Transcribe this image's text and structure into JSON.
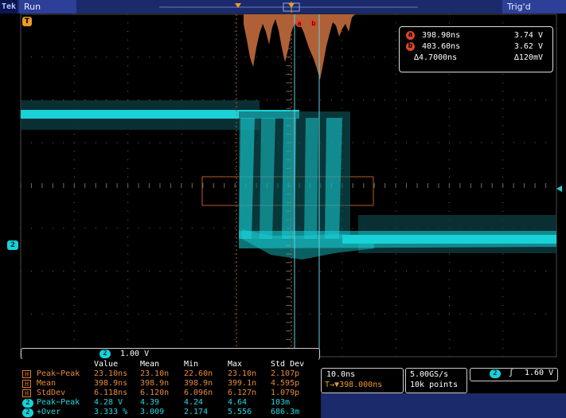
{
  "header": {
    "logo": "Tek",
    "run_state": "Run",
    "trigger_state": "Trig'd"
  },
  "markers": {
    "trigger_marker": "T",
    "ch2_ground": "2",
    "cursor_a_label": "a",
    "cursor_b_label": "b"
  },
  "cursor_readout": {
    "a": {
      "label": "a",
      "time": "398.90ns",
      "voltage": "3.74 V"
    },
    "b": {
      "label": "b",
      "time": "403.60ns",
      "voltage": "3.62 V"
    },
    "delta": {
      "time": "∆4.7000ns",
      "voltage": "∆120mV"
    }
  },
  "channel_scale": {
    "channel": "2",
    "value": "1.00 V"
  },
  "measurements": {
    "headers": [
      "Value",
      "Mean",
      "Min",
      "Max",
      "Std Dev"
    ],
    "rows": [
      {
        "badge": "H",
        "name": "Peak−Peak",
        "values": [
          "23.10ns",
          "23.10n",
          "22.60n",
          "23.10n",
          "2.107p"
        ]
      },
      {
        "badge": "H",
        "name": "Mean",
        "values": [
          "398.9ns",
          "398.9n",
          "398.9n",
          "399.1n",
          "4.595p"
        ]
      },
      {
        "badge": "H",
        "name": "StdDev",
        "values": [
          "6.118ns",
          "6.120n",
          "6.096n",
          "6.127n",
          "1.079p"
        ]
      },
      {
        "badge": "2",
        "name": "Peak−Peak",
        "values": [
          "4.28 V",
          "4.39",
          "4.24",
          "4.64",
          "103m"
        ]
      },
      {
        "badge": "2",
        "name": "+Over",
        "values": [
          "3.333 %",
          "3.009",
          "2.174",
          "5.556",
          "686.3m"
        ]
      }
    ]
  },
  "horizontal": {
    "scale": "10.0ns",
    "position": "398.000ns",
    "position_prefix": "T→▼"
  },
  "acquisition": {
    "sample_rate": "5.00GS/s",
    "record_length": "10k points"
  },
  "trigger": {
    "channel": "2",
    "slope_icon": "ʃ",
    "level": "1.60 V"
  },
  "colors": {
    "trace": "#19d2d8",
    "histogram": "#b8653a",
    "cursor": "#5fd0e0",
    "grid": "#5a5a5a",
    "histogram_box": "#b85a2a",
    "header_bg": "#1b2a6b"
  }
}
